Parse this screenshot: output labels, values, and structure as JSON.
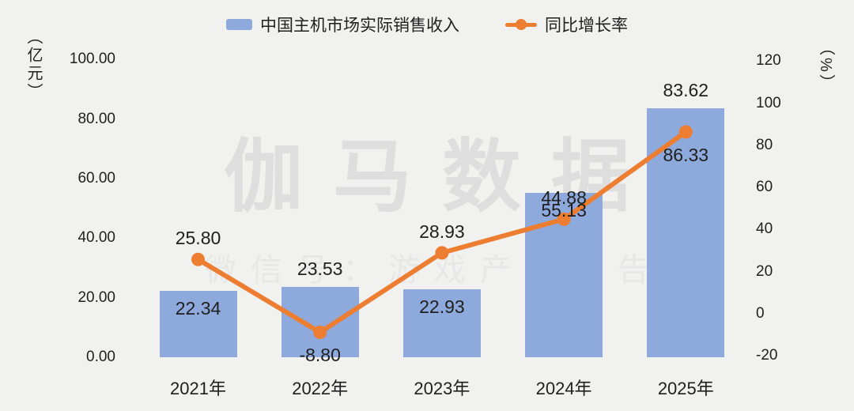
{
  "colors": {
    "background": "#f1f1f0",
    "bar": "#8ea9db",
    "line": "#ed7d31",
    "text": "#1f1f1f",
    "watermark_primary": "#dedede",
    "watermark_secondary": "#e7e7e7"
  },
  "legend": {
    "bar_label": "中国主机市场实际销售收入",
    "line_label": "同比增长率"
  },
  "watermark": {
    "line1": "伽马数据",
    "line2": "微信号：游戏产业报告"
  },
  "chart_data": {
    "type": "bar+line combo",
    "categories": [
      "2021年",
      "2022年",
      "2023年",
      "2024年",
      "2025年"
    ],
    "series": [
      {
        "name": "中国主机市场实际销售收入",
        "type": "bar",
        "axis": "left",
        "color": "#8ea9db",
        "values": [
          22.34,
          23.53,
          22.93,
          55.13,
          83.62
        ],
        "labels": [
          "22.34",
          "23.53",
          "22.93",
          "55.13",
          "83.62"
        ],
        "label_placement": [
          "inside",
          "above",
          "inside",
          "inside",
          "above"
        ]
      },
      {
        "name": "同比增长率",
        "type": "line",
        "axis": "right",
        "color": "#ed7d31",
        "values": [
          25.8,
          -8.8,
          28.93,
          44.88,
          86.33
        ],
        "labels": [
          "25.80",
          "-8.80",
          "28.93",
          "44.88",
          "86.33"
        ],
        "label_placement": [
          "above",
          "below",
          "above",
          "above",
          "below"
        ]
      }
    ],
    "left_axis": {
      "title": "（亿元）",
      "unit": "亿元",
      "ticks": [
        "100.00",
        "80.00",
        "60.00",
        "40.00",
        "20.00",
        "0.00"
      ],
      "min": 0,
      "max": 100
    },
    "right_axis": {
      "title": "（%）",
      "unit": "%",
      "ticks": [
        "120",
        "100",
        "80",
        "60",
        "40",
        "20",
        "0",
        "-20"
      ],
      "min": -20,
      "max": 120
    },
    "grid": "off",
    "legend_position": "top-center"
  }
}
